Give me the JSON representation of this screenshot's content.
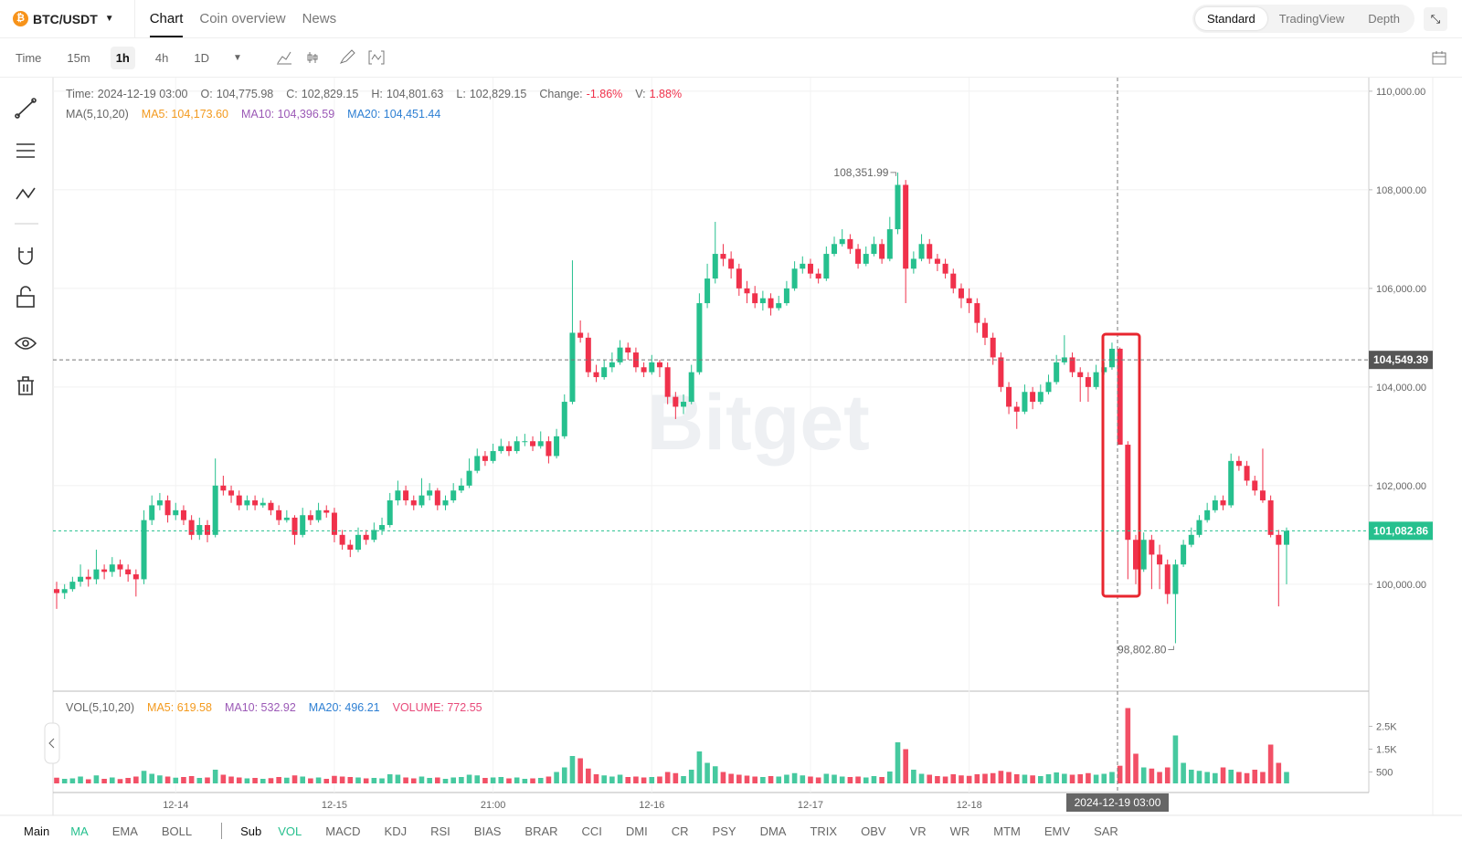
{
  "header": {
    "symbol": "BTC/USDT",
    "tabs": [
      "Chart",
      "Coin overview",
      "News"
    ],
    "active_tab": 0,
    "views": [
      "Standard",
      "TradingView",
      "Depth"
    ],
    "active_view": 0
  },
  "toolbar": {
    "intervals": [
      "Time",
      "15m",
      "1h",
      "4h",
      "1D"
    ],
    "active_interval": 2
  },
  "bottom": {
    "main_label": "Main",
    "main": [
      "MA",
      "EMA",
      "BOLL"
    ],
    "sub_label": "Sub",
    "sub": [
      "VOL",
      "MACD",
      "KDJ",
      "RSI",
      "BIAS",
      "BRAR",
      "CCI",
      "DMI",
      "CR",
      "PSY",
      "DMA",
      "TRIX",
      "OBV",
      "VR",
      "WR",
      "MTM",
      "EMV",
      "SAR"
    ]
  },
  "chart_data": {
    "type": "candlestick",
    "watermark": "Bitget",
    "ohlc_info": [
      {
        "label": "Time:",
        "value": "2024-12-19 03:00"
      },
      {
        "label": "O:",
        "value": "104,775.98"
      },
      {
        "label": "C:",
        "value": "102,829.15"
      },
      {
        "label": "H:",
        "value": "104,801.63"
      },
      {
        "label": "L:",
        "value": "102,829.15"
      },
      {
        "label": "Change:",
        "value": "-1.86%",
        "color": "#f0314b"
      },
      {
        "label": "V:",
        "value": "1.88%",
        "color": "#f0314b"
      }
    ],
    "ma_legend": {
      "title": "MA(5,10,20)",
      "items": [
        {
          "text": "MA5: 104,173.60",
          "color": "#f39a1e"
        },
        {
          "text": "MA10: 104,396.59",
          "color": "#9b59b6"
        },
        {
          "text": "MA20: 104,451.44",
          "color": "#2d7fd3"
        }
      ]
    },
    "vol_legend": {
      "title": "VOL(5,10,20)",
      "items": [
        {
          "text": "MA5: 619.58",
          "color": "#f39a1e"
        },
        {
          "text": "MA10: 532.92",
          "color": "#9b59b6"
        },
        {
          "text": "MA20: 496.21",
          "color": "#2d7fd3"
        },
        {
          "text": "VOLUME: 772.55",
          "color": "#e84a7a"
        }
      ]
    },
    "up_color": "#26c08e",
    "down_color": "#f0314b",
    "ylim": [
      97830,
      110220
    ],
    "yticks": [
      {
        "value": 100000,
        "label": "100,000.00"
      },
      {
        "value": 102000,
        "label": "102,000.00"
      },
      {
        "value": 104000,
        "label": "104,000.00"
      },
      {
        "value": 106000,
        "label": "106,000.00"
      },
      {
        "value": 108000,
        "label": "108,000.00"
      },
      {
        "value": 110000,
        "label": "110,000.00"
      }
    ],
    "xticks": [
      {
        "value": 15,
        "label": "12-14"
      },
      {
        "value": 35,
        "label": "12-15"
      },
      {
        "value": 55,
        "label": "21:00"
      },
      {
        "value": 75,
        "label": "12-16"
      },
      {
        "value": 95,
        "label": "12-17"
      },
      {
        "value": 115,
        "label": "12-18"
      }
    ],
    "vol_ylim": [
      0,
      3720
    ],
    "vol_yticks": [
      500,
      {
        "value": 1500,
        "label": "1.5K"
      },
      {
        "value": 2500,
        "label": "2.5K"
      }
    ],
    "crosshair": {
      "time_label": "2024-12-19 03:00",
      "price": {
        "value": 104549.39,
        "label": "104,549.39"
      }
    },
    "last_price": {
      "value": 101082.86,
      "label": "101,082.86"
    },
    "high_mark": {
      "index": 106,
      "value": 108351.99,
      "label": "108,351.99"
    },
    "low_mark": {
      "index": 141,
      "value": 98802.8,
      "label": "98,802.80"
    },
    "candles": [
      [
        99900,
        100050,
        99500,
        99820
      ],
      [
        99820,
        100000,
        99700,
        99900
      ],
      [
        99900,
        100150,
        99850,
        100050
      ],
      [
        100050,
        100400,
        99950,
        100150
      ],
      [
        100150,
        100300,
        99950,
        100100
      ],
      [
        100100,
        100700,
        100000,
        100300
      ],
      [
        100300,
        100400,
        100100,
        100250
      ],
      [
        100250,
        100550,
        100150,
        100400
      ],
      [
        100400,
        100500,
        100150,
        100300
      ],
      [
        100300,
        100400,
        100050,
        100200
      ],
      [
        100200,
        100300,
        99750,
        100100
      ],
      [
        100100,
        101500,
        100000,
        101300
      ],
      [
        101300,
        101800,
        101200,
        101600
      ],
      [
        101600,
        101850,
        101500,
        101700
      ],
      [
        101700,
        101800,
        101250,
        101400
      ],
      [
        101400,
        101650,
        101300,
        101500
      ],
      [
        101500,
        101600,
        101200,
        101300
      ],
      [
        101300,
        101400,
        100900,
        101000
      ],
      [
        101000,
        101350,
        100900,
        101200
      ],
      [
        101200,
        101300,
        100850,
        101000
      ],
      [
        101000,
        102550,
        100950,
        102000
      ],
      [
        102000,
        102200,
        101800,
        101900
      ],
      [
        101900,
        102000,
        101650,
        101800
      ],
      [
        101800,
        101900,
        101500,
        101600
      ],
      [
        101600,
        101800,
        101500,
        101700
      ],
      [
        101700,
        101800,
        101500,
        101600
      ],
      [
        101600,
        101750,
        101550,
        101650
      ],
      [
        101650,
        101700,
        101400,
        101500
      ],
      [
        101500,
        101600,
        101200,
        101300
      ],
      [
        101300,
        101500,
        101250,
        101350
      ],
      [
        101350,
        101400,
        100800,
        101000
      ],
      [
        101000,
        101550,
        100950,
        101400
      ],
      [
        101400,
        101500,
        101200,
        101300
      ],
      [
        101300,
        101650,
        101250,
        101500
      ],
      [
        101500,
        101600,
        101350,
        101450
      ],
      [
        101450,
        101550,
        100850,
        101000
      ],
      [
        101000,
        101100,
        100700,
        100800
      ],
      [
        100800,
        100900,
        100550,
        100700
      ],
      [
        100700,
        101150,
        100650,
        101000
      ],
      [
        101000,
        101100,
        100800,
        100900
      ],
      [
        100900,
        101250,
        100850,
        101100
      ],
      [
        101100,
        101350,
        101000,
        101200
      ],
      [
        101200,
        101850,
        101150,
        101700
      ],
      [
        101700,
        102100,
        101600,
        101900
      ],
      [
        101900,
        102000,
        101600,
        101700
      ],
      [
        101700,
        101800,
        101500,
        101600
      ],
      [
        101600,
        102150,
        101550,
        101800
      ],
      [
        101800,
        102050,
        101700,
        101900
      ],
      [
        101900,
        101950,
        101500,
        101600
      ],
      [
        101600,
        101800,
        101500,
        101700
      ],
      [
        101700,
        102050,
        101650,
        101900
      ],
      [
        101900,
        102150,
        101850,
        102000
      ],
      [
        102000,
        102550,
        101950,
        102300
      ],
      [
        102300,
        102750,
        102250,
        102600
      ],
      [
        102600,
        102700,
        102400,
        102500
      ],
      [
        102500,
        102850,
        102450,
        102700
      ],
      [
        102700,
        102950,
        102650,
        102800
      ],
      [
        102800,
        102900,
        102600,
        102700
      ],
      [
        102700,
        103000,
        102650,
        102900
      ],
      [
        102900,
        103050,
        102800,
        102900
      ],
      [
        102900,
        103000,
        102700,
        102800
      ],
      [
        102800,
        103100,
        102750,
        102900
      ],
      [
        102900,
        103000,
        102450,
        102600
      ],
      [
        102600,
        103150,
        102550,
        103000
      ],
      [
        103000,
        103850,
        102950,
        103700
      ],
      [
        103700,
        106570,
        103650,
        105100
      ],
      [
        105100,
        105350,
        104900,
        105000
      ],
      [
        105000,
        105100,
        104200,
        104300
      ],
      [
        104300,
        104450,
        104100,
        104200
      ],
      [
        104200,
        104550,
        104150,
        104400
      ],
      [
        104400,
        104700,
        104300,
        104500
      ],
      [
        104500,
        104950,
        104450,
        104800
      ],
      [
        104800,
        104900,
        104550,
        104700
      ],
      [
        104700,
        104800,
        104300,
        104400
      ],
      [
        104400,
        104500,
        104200,
        104300
      ],
      [
        104300,
        104650,
        104250,
        104500
      ],
      [
        104500,
        104550,
        104200,
        104400
      ],
      [
        104400,
        104500,
        103650,
        103800
      ],
      [
        103800,
        103900,
        103350,
        103600
      ],
      [
        103600,
        103850,
        103450,
        103700
      ],
      [
        103700,
        104450,
        103650,
        104300
      ],
      [
        104300,
        105900,
        104250,
        105700
      ],
      [
        105700,
        106500,
        105600,
        106200
      ],
      [
        106200,
        107350,
        106100,
        106700
      ],
      [
        106700,
        106900,
        106450,
        106600
      ],
      [
        106600,
        106750,
        106200,
        106400
      ],
      [
        106400,
        106500,
        105850,
        106000
      ],
      [
        106000,
        106150,
        105700,
        105900
      ],
      [
        105900,
        106050,
        105600,
        105700
      ],
      [
        105700,
        105950,
        105550,
        105800
      ],
      [
        105800,
        105900,
        105450,
        105600
      ],
      [
        105600,
        105850,
        105550,
        105700
      ],
      [
        105700,
        106150,
        105650,
        106000
      ],
      [
        106000,
        106550,
        105950,
        106400
      ],
      [
        106400,
        106650,
        106300,
        106500
      ],
      [
        106500,
        106600,
        106200,
        106300
      ],
      [
        106300,
        106400,
        106100,
        106200
      ],
      [
        106200,
        106850,
        106150,
        106700
      ],
      [
        106700,
        107050,
        106650,
        106900
      ],
      [
        106900,
        107200,
        106850,
        107000
      ],
      [
        107000,
        107100,
        106700,
        106800
      ],
      [
        106800,
        106900,
        106400,
        106500
      ],
      [
        106500,
        106850,
        106450,
        106700
      ],
      [
        106700,
        107050,
        106650,
        106900
      ],
      [
        106900,
        107000,
        106500,
        106600
      ],
      [
        106600,
        107450,
        106550,
        107200
      ],
      [
        107200,
        108351.99,
        107100,
        108100
      ],
      [
        108100,
        108200,
        105700,
        106400
      ],
      [
        106400,
        106750,
        106300,
        106600
      ],
      [
        106600,
        107100,
        106550,
        106900
      ],
      [
        106900,
        107000,
        106500,
        106600
      ],
      [
        106600,
        106700,
        106350,
        106500
      ],
      [
        106500,
        106600,
        106200,
        106300
      ],
      [
        106300,
        106400,
        105900,
        106000
      ],
      [
        106000,
        106100,
        105600,
        105800
      ],
      [
        105800,
        106000,
        105500,
        105700
      ],
      [
        105700,
        105800,
        105100,
        105300
      ],
      [
        105300,
        105400,
        104850,
        105000
      ],
      [
        105000,
        105100,
        104450,
        104600
      ],
      [
        104600,
        104700,
        103900,
        104000
      ],
      [
        104000,
        104100,
        103450,
        103600
      ],
      [
        103600,
        103700,
        103150,
        103500
      ],
      [
        103500,
        104050,
        103450,
        103900
      ],
      [
        103900,
        104000,
        103550,
        103700
      ],
      [
        103700,
        104050,
        103650,
        103900
      ],
      [
        103900,
        104250,
        103850,
        104100
      ],
      [
        104100,
        104650,
        104050,
        104500
      ],
      [
        104500,
        105050,
        104450,
        104600
      ],
      [
        104600,
        104700,
        104200,
        104300
      ],
      [
        104300,
        104400,
        103700,
        104200
      ],
      [
        104200,
        104300,
        103700,
        104000
      ],
      [
        104000,
        104450,
        103950,
        104300
      ],
      [
        104300,
        104500,
        104250,
        104400
      ],
      [
        104400,
        104900,
        104350,
        104775.98
      ],
      [
        104775.98,
        104801.63,
        102829.15,
        102829.15
      ],
      [
        102829.15,
        102900,
        100100,
        100900
      ],
      [
        100900,
        101000,
        100000,
        100300
      ],
      [
        100300,
        101050,
        100250,
        100900
      ],
      [
        100900,
        101000,
        99900,
        100600
      ],
      [
        100600,
        100800,
        99900,
        100400
      ],
      [
        100400,
        100500,
        99600,
        99800
      ],
      [
        99800,
        100500,
        98802.8,
        100400
      ],
      [
        100400,
        100900,
        100350,
        100800
      ],
      [
        100800,
        101150,
        100750,
        101000
      ],
      [
        101000,
        101400,
        100950,
        101300
      ],
      [
        101300,
        101650,
        101250,
        101500
      ],
      [
        101500,
        101800,
        101450,
        101700
      ],
      [
        101700,
        101800,
        101500,
        101600
      ],
      [
        101600,
        102650,
        101550,
        102500
      ],
      [
        102500,
        102600,
        102300,
        102400
      ],
      [
        102400,
        102500,
        102000,
        102100
      ],
      [
        102100,
        102200,
        101800,
        101900
      ],
      [
        101900,
        102750,
        101650,
        101700
      ],
      [
        101700,
        101800,
        100950,
        101000
      ],
      [
        101000,
        101100,
        99550,
        100800
      ],
      [
        100800,
        101150,
        100000,
        101082.86
      ]
    ],
    "volume": [
      250,
      200,
      220,
      300,
      180,
      350,
      200,
      260,
      190,
      240,
      300,
      550,
      420,
      350,
      300,
      250,
      280,
      320,
      240,
      260,
      600,
      380,
      300,
      260,
      220,
      240,
      200,
      230,
      280,
      250,
      350,
      300,
      220,
      260,
      200,
      330,
      300,
      280,
      260,
      220,
      240,
      220,
      400,
      380,
      260,
      220,
      300,
      240,
      260,
      200,
      260,
      280,
      380,
      350,
      240,
      260,
      280,
      220,
      260,
      200,
      220,
      240,
      300,
      500,
      700,
      1200,
      1100,
      650,
      400,
      350,
      300,
      380,
      280,
      300,
      260,
      280,
      300,
      500,
      450,
      320,
      600,
      1400,
      900,
      750,
      500,
      420,
      380,
      340,
      300,
      280,
      320,
      300,
      380,
      450,
      350,
      300,
      260,
      420,
      380,
      300,
      280,
      300,
      260,
      320,
      280,
      520,
      1800,
      1500,
      600,
      420,
      380,
      320,
      300,
      400,
      350,
      330,
      400,
      420,
      450,
      550,
      500,
      400,
      380,
      350,
      320,
      400,
      480,
      420,
      380,
      400,
      450,
      380,
      420,
      500,
      772.55,
      3300,
      1300,
      700,
      650,
      500,
      700,
      2100,
      900,
      600,
      550,
      500,
      450,
      700,
      600,
      500,
      450,
      600,
      500,
      1700,
      900,
      500
    ]
  }
}
